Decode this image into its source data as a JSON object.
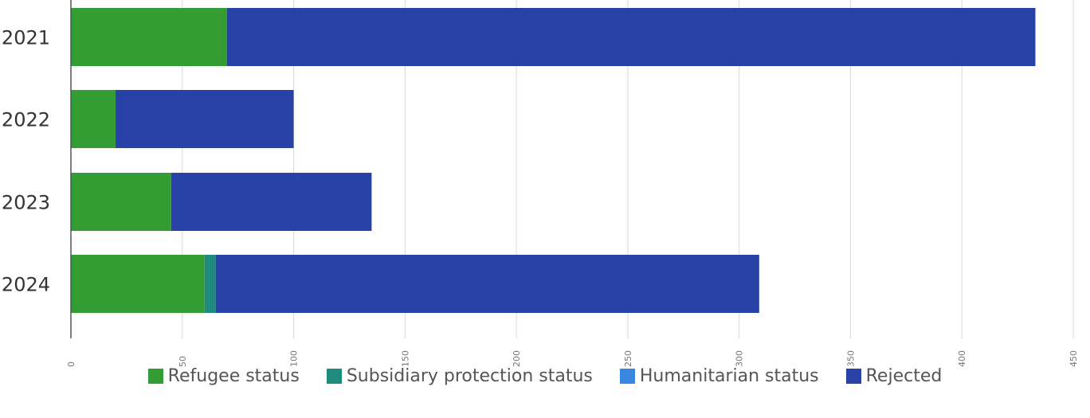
{
  "chart_data": {
    "type": "bar",
    "orientation": "horizontal",
    "stacked": true,
    "categories": [
      "2021",
      "2022",
      "2023",
      "2024"
    ],
    "series": [
      {
        "name": "Refugee status",
        "color": "#339c33",
        "values": [
          70,
          20,
          45,
          60
        ]
      },
      {
        "name": "Subsidiary protection status",
        "color": "#1f8a7e",
        "values": [
          0,
          0,
          0,
          5
        ]
      },
      {
        "name": "Humanitarian status",
        "color": "#3a87e0",
        "values": [
          0,
          0,
          0,
          0
        ]
      },
      {
        "name": "Rejected",
        "color": "#2741a6",
        "values": [
          363,
          80,
          90,
          244
        ]
      }
    ],
    "xlim": [
      0,
      450
    ],
    "x_ticks": [
      "0",
      "50",
      "100",
      "150",
      "200",
      "250",
      "300",
      "350",
      "400",
      "450"
    ],
    "grid": true,
    "legend_position": "bottom"
  }
}
